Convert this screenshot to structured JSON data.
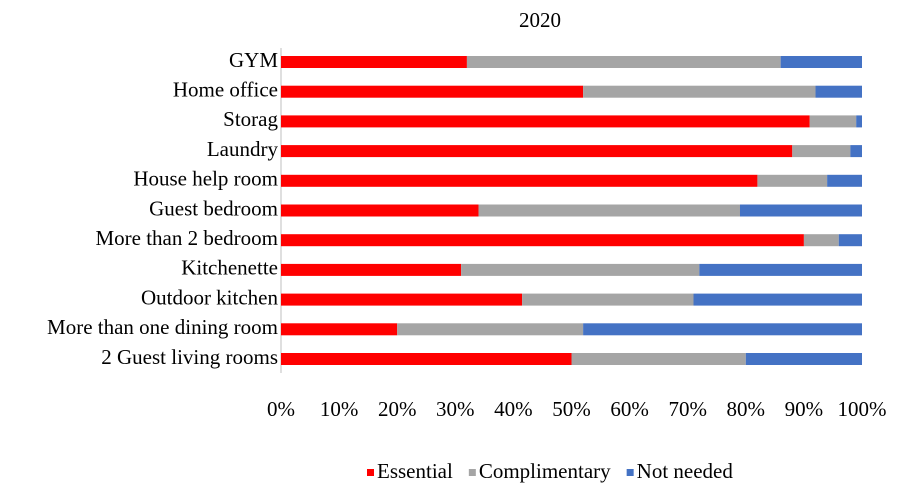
{
  "chart_data": {
    "type": "stacked-bar-horizontal",
    "title": "2020",
    "categories": [
      "GYM",
      "Home office",
      "Storag",
      "Laundry",
      "House help room",
      "Guest bedroom",
      "More than 2 bedroom",
      "Kitchenette",
      "Outdoor kitchen",
      "More than one dining room",
      "2 Guest living rooms"
    ],
    "series": [
      {
        "name": "Essential",
        "color": "#ff0000",
        "values": [
          32,
          52,
          91,
          88,
          82,
          34,
          90,
          31,
          41.5,
          20,
          50
        ]
      },
      {
        "name": "Complimentary",
        "color": "#a5a5a5",
        "values": [
          54,
          40,
          8,
          10,
          12,
          45,
          6,
          41,
          29.5,
          32,
          30
        ]
      },
      {
        "name": "Not needed",
        "color": "#4472c4",
        "values": [
          14,
          8,
          1,
          2,
          6,
          21,
          4,
          28,
          29,
          48,
          20
        ]
      }
    ],
    "xlim": [
      0,
      100
    ],
    "xticks": [
      {
        "value": 0,
        "label": "0%"
      },
      {
        "value": 10,
        "label": "10%"
      },
      {
        "value": 20,
        "label": "20%"
      },
      {
        "value": 30,
        "label": "30%"
      },
      {
        "value": 40,
        "label": "40%"
      },
      {
        "value": 50,
        "label": "50%"
      },
      {
        "value": 60,
        "label": "60%"
      },
      {
        "value": 70,
        "label": "70%"
      },
      {
        "value": 80,
        "label": "80%"
      },
      {
        "value": 90,
        "label": "90%"
      },
      {
        "value": 100,
        "label": "100%"
      }
    ],
    "legend": "bottom"
  }
}
